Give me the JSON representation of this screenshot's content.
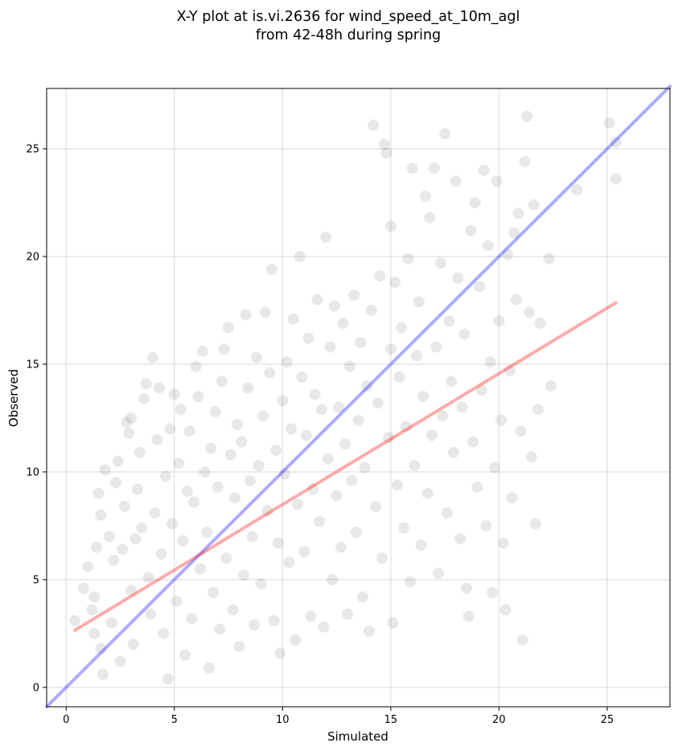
{
  "chart_data": {
    "type": "scatter",
    "title_line1": "X-Y plot at is.vi.2636 for wind_speed_at_10m_agl",
    "title_line2": "from 42-48h during spring",
    "xlabel": "Simulated",
    "ylabel": "Observed",
    "xlim": [
      -0.9,
      27.9
    ],
    "ylim": [
      -0.9,
      27.8
    ],
    "xticks": [
      0,
      5,
      10,
      15,
      20,
      25
    ],
    "yticks": [
      0,
      5,
      10,
      15,
      20,
      25
    ],
    "grid": true,
    "point_color": "#000000",
    "point_opacity": 0.09,
    "reference_line": {
      "color": "#0000ff",
      "opacity": 0.33,
      "from": [
        -0.9,
        -0.9
      ],
      "to": [
        27.9,
        27.9
      ]
    },
    "fit_line": {
      "color": "#ff0000",
      "opacity": 0.33,
      "from": [
        0.4,
        2.65
      ],
      "to": [
        25.4,
        17.85
      ]
    },
    "points": [
      [
        0.4,
        3.1
      ],
      [
        0.8,
        4.6
      ],
      [
        1.0,
        5.6
      ],
      [
        1.2,
        3.6
      ],
      [
        1.3,
        4.2
      ],
      [
        1.4,
        6.5
      ],
      [
        1.5,
        9.0
      ],
      [
        1.6,
        8.0
      ],
      [
        1.3,
        2.5
      ],
      [
        1.6,
        1.8
      ],
      [
        1.7,
        0.6
      ],
      [
        1.8,
        10.1
      ],
      [
        2.0,
        7.0
      ],
      [
        2.1,
        3.0
      ],
      [
        2.2,
        5.9
      ],
      [
        2.3,
        9.5
      ],
      [
        2.4,
        10.5
      ],
      [
        2.5,
        1.2
      ],
      [
        2.6,
        6.4
      ],
      [
        2.7,
        8.4
      ],
      [
        2.8,
        12.3
      ],
      [
        2.9,
        11.8
      ],
      [
        3.0,
        12.5
      ],
      [
        3.0,
        4.5
      ],
      [
        3.1,
        2.0
      ],
      [
        3.2,
        6.9
      ],
      [
        3.3,
        9.2
      ],
      [
        3.4,
        10.9
      ],
      [
        3.5,
        7.4
      ],
      [
        3.6,
        13.4
      ],
      [
        3.7,
        14.1
      ],
      [
        3.8,
        5.1
      ],
      [
        3.9,
        3.4
      ],
      [
        4.0,
        15.3
      ],
      [
        4.1,
        8.1
      ],
      [
        4.2,
        11.5
      ],
      [
        4.3,
        13.9
      ],
      [
        4.4,
        6.2
      ],
      [
        4.5,
        2.5
      ],
      [
        4.6,
        9.8
      ],
      [
        4.7,
        0.4
      ],
      [
        4.8,
        12.0
      ],
      [
        4.9,
        7.6
      ],
      [
        5.0,
        13.6
      ],
      [
        5.1,
        4.0
      ],
      [
        5.2,
        10.4
      ],
      [
        5.3,
        12.9
      ],
      [
        5.4,
        6.8
      ],
      [
        5.5,
        1.5
      ],
      [
        5.6,
        9.1
      ],
      [
        5.7,
        11.9
      ],
      [
        5.8,
        3.2
      ],
      [
        5.9,
        8.6
      ],
      [
        6.0,
        14.9
      ],
      [
        6.1,
        13.5
      ],
      [
        6.2,
        5.5
      ],
      [
        6.3,
        15.6
      ],
      [
        6.4,
        10.0
      ],
      [
        6.5,
        7.2
      ],
      [
        6.6,
        0.9
      ],
      [
        6.7,
        11.1
      ],
      [
        6.8,
        4.4
      ],
      [
        6.9,
        12.8
      ],
      [
        7.0,
        9.3
      ],
      [
        7.1,
        2.7
      ],
      [
        7.2,
        14.2
      ],
      [
        7.3,
        15.7
      ],
      [
        7.4,
        6.0
      ],
      [
        7.5,
        16.7
      ],
      [
        7.6,
        10.8
      ],
      [
        7.7,
        3.6
      ],
      [
        7.8,
        8.8
      ],
      [
        7.9,
        12.2
      ],
      [
        8.0,
        1.9
      ],
      [
        8.1,
        11.4
      ],
      [
        8.2,
        5.2
      ],
      [
        8.3,
        17.3
      ],
      [
        8.4,
        13.9
      ],
      [
        8.5,
        9.6
      ],
      [
        8.6,
        7.0
      ],
      [
        8.7,
        2.9
      ],
      [
        8.8,
        15.3
      ],
      [
        8.9,
        10.3
      ],
      [
        9.0,
        4.8
      ],
      [
        9.1,
        12.6
      ],
      [
        9.2,
        17.4
      ],
      [
        9.3,
        8.2
      ],
      [
        9.4,
        14.6
      ],
      [
        9.5,
        19.4
      ],
      [
        9.6,
        3.1
      ],
      [
        9.7,
        11.0
      ],
      [
        9.8,
        6.7
      ],
      [
        9.9,
        1.6
      ],
      [
        10.0,
        13.3
      ],
      [
        10.1,
        9.9
      ],
      [
        10.2,
        15.1
      ],
      [
        10.3,
        5.8
      ],
      [
        10.4,
        12.0
      ],
      [
        10.5,
        17.1
      ],
      [
        10.6,
        2.2
      ],
      [
        10.7,
        8.5
      ],
      [
        10.8,
        20.0
      ],
      [
        10.9,
        14.4
      ],
      [
        11.0,
        6.3
      ],
      [
        11.1,
        11.7
      ],
      [
        11.2,
        16.2
      ],
      [
        11.3,
        3.3
      ],
      [
        11.4,
        9.2
      ],
      [
        11.5,
        13.6
      ],
      [
        11.6,
        18.0
      ],
      [
        11.7,
        7.7
      ],
      [
        11.8,
        12.9
      ],
      [
        11.9,
        2.8
      ],
      [
        12.0,
        20.9
      ],
      [
        12.1,
        10.6
      ],
      [
        12.2,
        15.8
      ],
      [
        12.3,
        5.0
      ],
      [
        12.4,
        17.7
      ],
      [
        12.5,
        8.9
      ],
      [
        12.6,
        13.0
      ],
      [
        12.7,
        6.5
      ],
      [
        12.8,
        16.9
      ],
      [
        12.9,
        11.3
      ],
      [
        13.0,
        3.4
      ],
      [
        13.1,
        14.9
      ],
      [
        13.2,
        9.6
      ],
      [
        13.3,
        18.2
      ],
      [
        13.4,
        7.2
      ],
      [
        13.5,
        12.4
      ],
      [
        13.6,
        16.0
      ],
      [
        13.7,
        4.2
      ],
      [
        13.8,
        10.2
      ],
      [
        13.9,
        14.0
      ],
      [
        14.0,
        2.6
      ],
      [
        14.1,
        17.5
      ],
      [
        14.2,
        26.1
      ],
      [
        14.3,
        8.4
      ],
      [
        14.4,
        13.2
      ],
      [
        14.5,
        19.1
      ],
      [
        14.6,
        6.0
      ],
      [
        14.7,
        25.2
      ],
      [
        14.8,
        24.8
      ],
      [
        14.9,
        11.6
      ],
      [
        15.0,
        15.7
      ],
      [
        15.0,
        21.4
      ],
      [
        15.1,
        3.0
      ],
      [
        15.2,
        18.8
      ],
      [
        15.3,
        9.4
      ],
      [
        15.4,
        14.4
      ],
      [
        15.5,
        16.7
      ],
      [
        15.6,
        7.4
      ],
      [
        15.7,
        12.1
      ],
      [
        15.8,
        19.9
      ],
      [
        15.9,
        4.9
      ],
      [
        16.0,
        24.1
      ],
      [
        16.1,
        10.3
      ],
      [
        16.2,
        15.4
      ],
      [
        16.3,
        17.9
      ],
      [
        16.4,
        6.6
      ],
      [
        16.5,
        13.5
      ],
      [
        16.6,
        22.8
      ],
      [
        16.7,
        9.0
      ],
      [
        16.8,
        21.8
      ],
      [
        16.9,
        11.7
      ],
      [
        17.0,
        24.1
      ],
      [
        17.1,
        15.8
      ],
      [
        17.2,
        5.3
      ],
      [
        17.3,
        19.7
      ],
      [
        17.4,
        12.6
      ],
      [
        17.5,
        25.7
      ],
      [
        17.6,
        8.1
      ],
      [
        17.7,
        17.0
      ],
      [
        17.8,
        14.2
      ],
      [
        17.9,
        10.9
      ],
      [
        18.0,
        23.5
      ],
      [
        18.1,
        19.0
      ],
      [
        18.2,
        6.9
      ],
      [
        18.3,
        13.0
      ],
      [
        18.4,
        16.4
      ],
      [
        18.5,
        4.6
      ],
      [
        18.6,
        3.3
      ],
      [
        18.7,
        21.2
      ],
      [
        18.8,
        11.4
      ],
      [
        18.9,
        22.5
      ],
      [
        19.0,
        9.3
      ],
      [
        19.1,
        18.6
      ],
      [
        19.2,
        13.8
      ],
      [
        19.3,
        24.0
      ],
      [
        19.4,
        7.5
      ],
      [
        19.5,
        20.5
      ],
      [
        19.6,
        15.1
      ],
      [
        19.7,
        4.4
      ],
      [
        19.8,
        10.2
      ],
      [
        19.9,
        23.5
      ],
      [
        20.0,
        17.0
      ],
      [
        20.1,
        12.4
      ],
      [
        20.2,
        6.7
      ],
      [
        20.3,
        3.6
      ],
      [
        20.4,
        20.1
      ],
      [
        20.5,
        14.7
      ],
      [
        20.6,
        8.8
      ],
      [
        20.7,
        21.1
      ],
      [
        20.8,
        18.0
      ],
      [
        20.9,
        22.0
      ],
      [
        21.0,
        11.9
      ],
      [
        21.1,
        2.2
      ],
      [
        21.2,
        24.4
      ],
      [
        21.3,
        26.5
      ],
      [
        21.4,
        17.4
      ],
      [
        21.5,
        10.7
      ],
      [
        21.6,
        22.4
      ],
      [
        21.7,
        7.6
      ],
      [
        21.8,
        12.9
      ],
      [
        21.9,
        16.9
      ],
      [
        22.3,
        19.9
      ],
      [
        22.4,
        14.0
      ],
      [
        23.6,
        23.1
      ],
      [
        25.1,
        26.2
      ],
      [
        25.4,
        25.3
      ],
      [
        25.4,
        23.6
      ]
    ]
  }
}
